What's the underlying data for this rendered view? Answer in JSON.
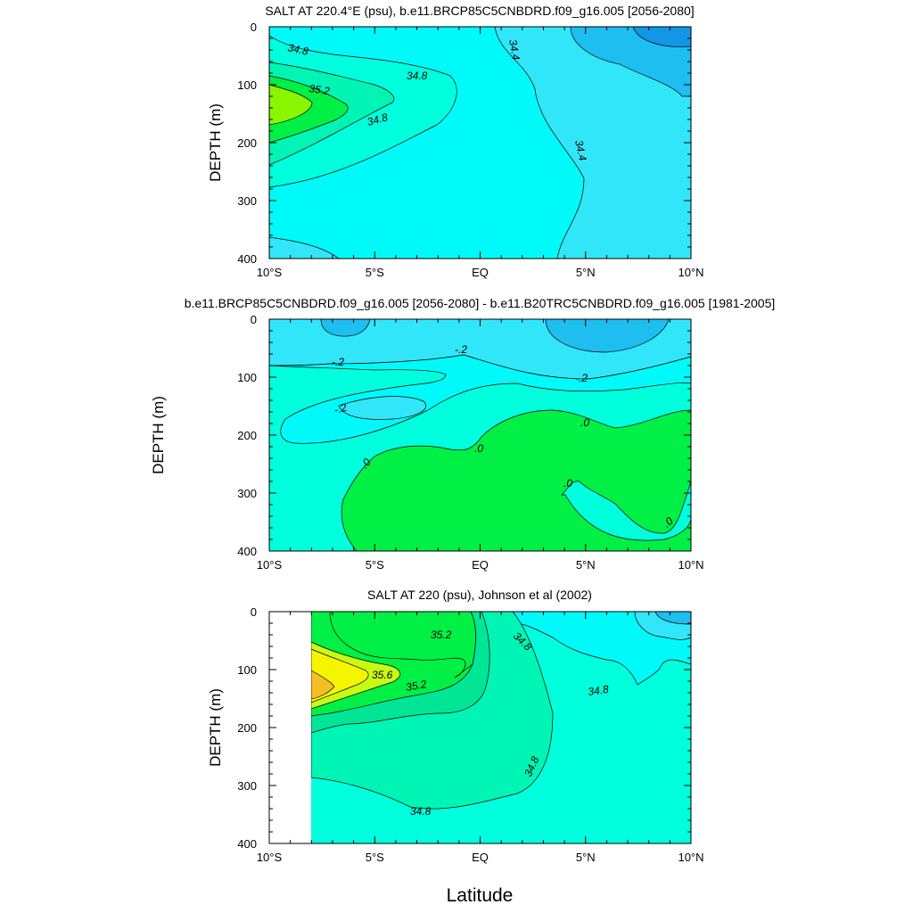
{
  "chart_data": [
    {
      "type": "contour",
      "title": "SALT AT 220.4°E (psu), b.e11.BRCP85C5CNBDRD.f09_g16.005 [2056-2080]",
      "xlabel": "",
      "ylabel": "DEPTH (m)",
      "xlim": [
        -10,
        10
      ],
      "ylim": [
        400,
        0
      ],
      "x_ticks": [
        -10,
        -5,
        0,
        5,
        10
      ],
      "x_tick_labels": [
        "10°S",
        "5°S",
        "EQ",
        "5°N",
        "10°N"
      ],
      "y_ticks": [
        0,
        100,
        200,
        300,
        400
      ],
      "y_tick_labels": [
        "0",
        "100",
        "200",
        "300",
        "400"
      ],
      "contour_labels": [
        {
          "text": "34.8",
          "x": -9.1,
          "y": 45
        },
        {
          "text": "34.8",
          "x": -3.0,
          "y": 85
        },
        {
          "text": "35.2",
          "x": -8.0,
          "y": 103
        },
        {
          "text": "34.8",
          "x": -4.8,
          "y": 162
        },
        {
          "text": "34.4",
          "x": 1.2,
          "y": 25
        },
        {
          "text": "34.4",
          "x": 4.8,
          "y": 210
        }
      ]
    },
    {
      "type": "contour",
      "title": "b.e11.BRCP85C5CNBDRD.f09_g16.005 [2056-2080] - b.e11.B20TRC5CNBDRD.f09_g16.005 [1981-2005]",
      "xlabel": "",
      "ylabel": "DEPTH (m)",
      "xlim": [
        -10,
        10
      ],
      "ylim": [
        400,
        0
      ],
      "x_ticks": [
        -10,
        -5,
        0,
        5,
        10
      ],
      "x_tick_labels": [
        "10°S",
        "5°S",
        "EQ",
        "5°N",
        "10°N"
      ],
      "y_ticks": [
        0,
        100,
        200,
        300,
        400
      ],
      "y_tick_labels": [
        "0",
        "100",
        "200",
        "300",
        "400"
      ],
      "contour_labels": [
        {
          "text": "-.2",
          "x": -6.8,
          "y": 70
        },
        {
          "text": "-.2",
          "x": -1.0,
          "y": 50
        },
        {
          "text": "-.2",
          "x": 4.5,
          "y": 100
        },
        {
          "text": "-.2",
          "x": -6.8,
          "y": 155
        },
        {
          "text": ".0",
          "x": 4.8,
          "y": 180
        },
        {
          "text": ".0",
          "x": -0.1,
          "y": 225
        },
        {
          "text": ".0",
          "x": -5.2,
          "y": 245
        },
        {
          "text": ".0",
          "x": 4.2,
          "y": 282
        },
        {
          "text": ".0",
          "x": 8.8,
          "y": 347
        }
      ]
    },
    {
      "type": "contour",
      "title": "SALT AT 220 (psu), Johnson et al (2002)",
      "xlabel": "Latitude",
      "ylabel": "DEPTH (m)",
      "xlim": [
        -10,
        10
      ],
      "ylim": [
        400,
        0
      ],
      "x_ticks": [
        -10,
        -5,
        0,
        5,
        10
      ],
      "x_tick_labels": [
        "10°S",
        "5°S",
        "EQ",
        "5°N",
        "10°N"
      ],
      "y_ticks": [
        0,
        100,
        200,
        300,
        400
      ],
      "y_tick_labels": [
        "0",
        "100",
        "200",
        "300",
        "400"
      ],
      "contour_labels": [
        {
          "text": "35.2",
          "x": -1.9,
          "y": 43
        },
        {
          "text": "34.8",
          "x": 2.1,
          "y": 48
        },
        {
          "text": "35.6",
          "x": -4.6,
          "y": 108
        },
        {
          "text": "35.2",
          "x": -3.1,
          "y": 128
        },
        {
          "text": "34.8",
          "x": 5.6,
          "y": 135
        },
        {
          "text": "34.8",
          "x": 2.8,
          "y": 265
        },
        {
          "text": "34.8",
          "x": -2.8,
          "y": 342
        }
      ]
    }
  ],
  "shared_xlabel": "Latitude",
  "colors": {
    "deep_blue": "#1496e6",
    "blue": "#1ebef0",
    "light_blue": "#32e6fa",
    "cyan": "#00fafa",
    "aqua": "#00ffdc",
    "mint": "#00f5b4",
    "teal_green": "#00e696",
    "green": "#00f046",
    "lime": "#8cf500",
    "yellow": "#f5f500",
    "orange": "#f5be28",
    "line": "#000000"
  }
}
